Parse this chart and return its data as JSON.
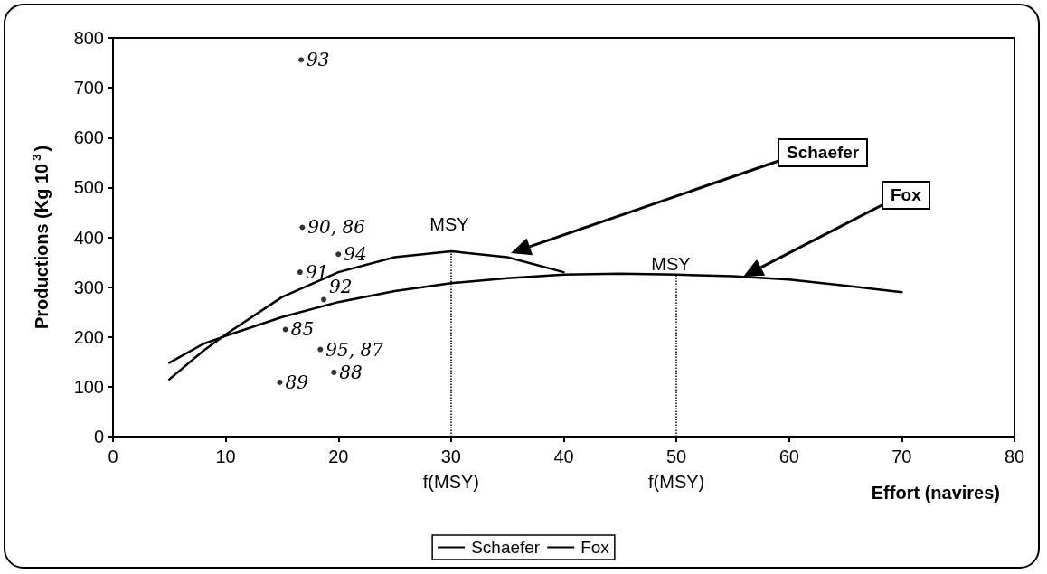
{
  "chart_data": {
    "type": "line",
    "ylabel": "Productions (Kg 10$^{3}$)",
    "xlabel": "Effort (navires)",
    "xlim": [
      0,
      80
    ],
    "xticks": [
      0,
      10,
      20,
      30,
      40,
      50,
      60,
      70,
      80
    ],
    "ylim": [
      0,
      800
    ],
    "yticks": [
      0,
      100,
      200,
      300,
      400,
      500,
      600,
      700,
      800
    ],
    "grid": false,
    "legend": "bottom",
    "marker": "none",
    "line_style": "solid",
    "series": [
      {
        "name": "Schaefer",
        "color": "#000000",
        "x": [
          5,
          8,
          10,
          15,
          20,
          25,
          30,
          35,
          40
        ],
        "values": [
          115,
          172,
          205,
          280,
          330,
          360,
          372,
          360,
          330
        ]
      },
      {
        "name": "Fox",
        "color": "#000000",
        "x": [
          5,
          8,
          10,
          15,
          20,
          25,
          30,
          35,
          40,
          45,
          50,
          55,
          60,
          65,
          70
        ],
        "values": [
          148,
          186,
          202,
          240,
          270,
          292,
          308,
          318,
          325,
          327,
          325,
          322,
          315,
          303,
          290
        ]
      },
      {
        "type": "scatter",
        "marker": "circle",
        "color": "#000000",
        "x": [
          16.7,
          16.8,
          16.6,
          20,
          18.7,
          15.3,
          18.4,
          14.8,
          19.6
        ],
        "values": [
          756,
          420,
          330,
          366,
          275,
          215,
          175,
          109,
          129
        ]
      }
    ],
    "ref_lines": [
      {
        "axis": "x",
        "value": 30,
        "label": "f(MSY)",
        "line_style": "dotted",
        "color": "#000000"
      },
      {
        "axis": "x",
        "value": 50,
        "label": "f(MSY)",
        "line_style": "dotted",
        "color": "#000000"
      }
    ],
    "annotations": [
      {
        "text": "93",
        "x": 16.7,
        "y": 756
      },
      {
        "text": "90, 86",
        "x": 16.8,
        "y": 420
      },
      {
        "text": "91",
        "x": 16.6,
        "y": 330
      },
      {
        "text": "94",
        "x": 20,
        "y": 366
      },
      {
        "text": "92",
        "x": 18.7,
        "y": 275
      },
      {
        "text": "85",
        "x": 15.3,
        "y": 215
      },
      {
        "text": "95, 87",
        "x": 18.4,
        "y": 175
      },
      {
        "text": "89",
        "x": 14.8,
        "y": 109
      },
      {
        "text": "88",
        "x": 19.6,
        "y": 129
      },
      "MSY",
      "MSY",
      "Schaefer",
      "Fox"
    ]
  }
}
